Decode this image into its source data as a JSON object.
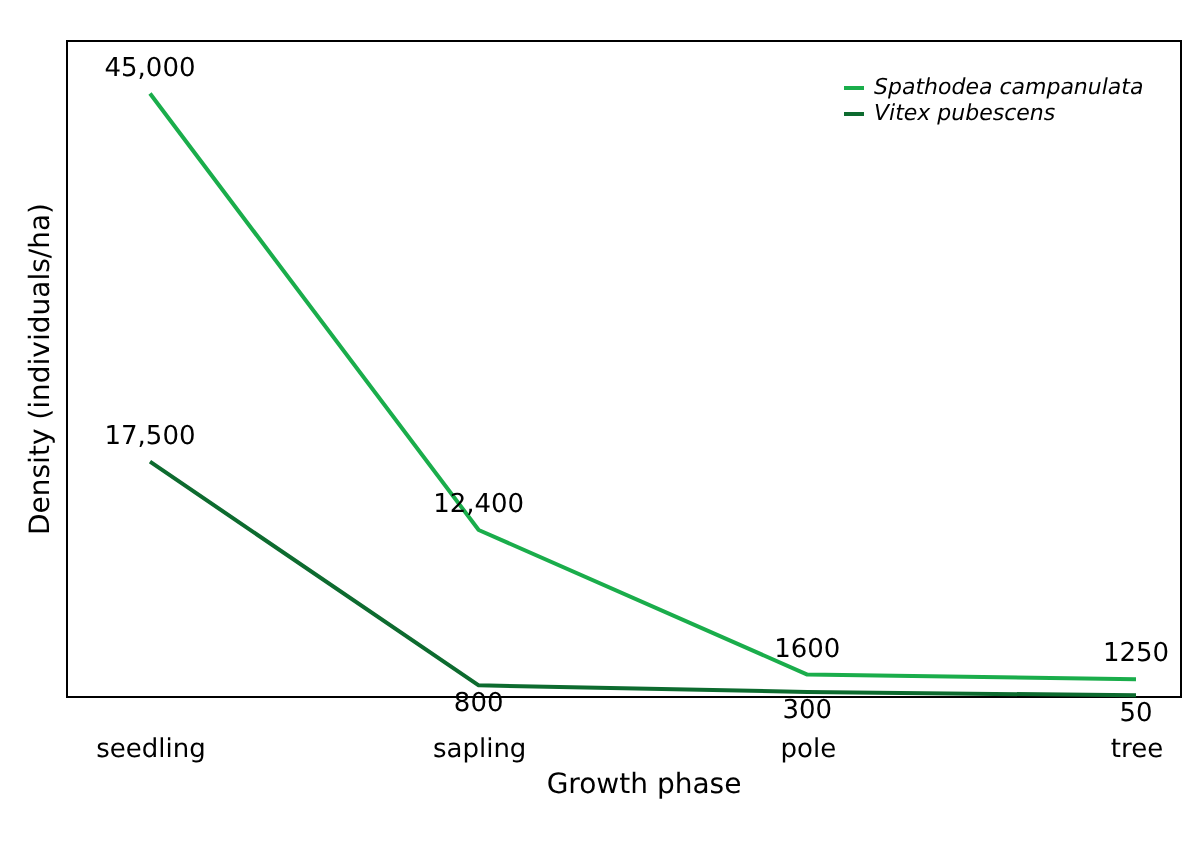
{
  "chart_data": {
    "type": "line",
    "xlabel": "Growth phase",
    "ylabel": "Density (individuals/ha)",
    "categories": [
      "seedling",
      "sapling",
      "pole",
      "tree"
    ],
    "series": [
      {
        "name": "Spathodea campanulata",
        "color": "#1aad4b",
        "values": [
          45000,
          12400,
          1600,
          1250
        ],
        "value_labels": [
          "45,000",
          "12,400",
          "1600",
          "1250"
        ]
      },
      {
        "name": "Vitex pubescens",
        "color": "#0d6b2f",
        "values": [
          17500,
          800,
          300,
          50
        ],
        "value_labels": [
          "17,500",
          "800",
          "300",
          "50"
        ]
      }
    ],
    "ylim": [
      0,
      49000
    ],
    "tick_labels": "x",
    "grid": false,
    "legend": "top right",
    "marker": "none",
    "line_style": "solid"
  }
}
